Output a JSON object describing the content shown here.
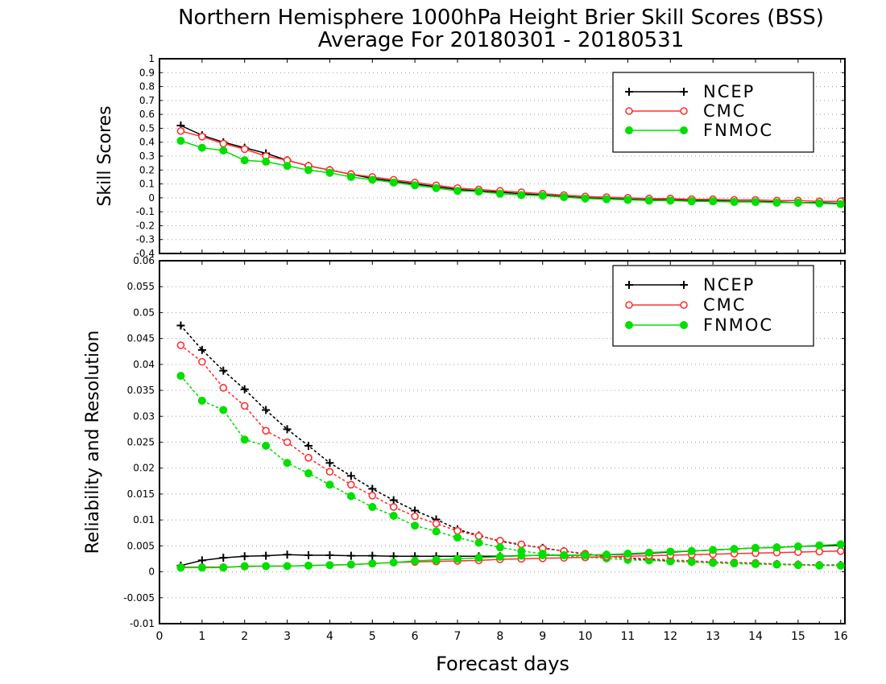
{
  "figure": {
    "title_line1": "Northern Hemisphere 1000hPa Height Brier Skill Scores (BSS)",
    "title_line2": "Average For 20180301 - 20180531",
    "xlabel": "Forecast days"
  },
  "chart_data": [
    {
      "type": "line",
      "ylabel": "Skill Scores",
      "xlim": [
        0,
        16.1
      ],
      "ylim": [
        -0.4,
        1
      ],
      "xticks": [
        0,
        1,
        2,
        3,
        4,
        5,
        6,
        7,
        8,
        9,
        10,
        11,
        12,
        13,
        14,
        15,
        16
      ],
      "yticks": [
        -0.4,
        -0.3,
        -0.2,
        -0.1,
        0,
        0.1,
        0.2,
        0.3,
        0.4,
        0.5,
        0.6,
        0.7,
        0.8,
        0.9,
        1
      ],
      "grid": true,
      "legend_position": "top-right",
      "legend": [
        "NCEP",
        "CMC",
        "FNMOC"
      ],
      "x": [
        0.5,
        1,
        1.5,
        2,
        2.5,
        3,
        3.5,
        4,
        4.5,
        5,
        5.5,
        6,
        6.5,
        7,
        7.5,
        8,
        8.5,
        9,
        9.5,
        10,
        10.5,
        11,
        11.5,
        12,
        12.5,
        13,
        13.5,
        14,
        14.5,
        15,
        15.5,
        16
      ],
      "series": [
        {
          "name": "NCEP",
          "color": "#000000",
          "marker": "plus",
          "values": [
            0.52,
            0.45,
            0.4,
            0.36,
            0.32,
            0.27,
            0.23,
            0.2,
            0.17,
            0.14,
            0.12,
            0.1,
            0.08,
            0.06,
            0.05,
            0.04,
            0.03,
            0.02,
            0.01,
            0.0,
            -0.005,
            -0.01,
            -0.015,
            -0.015,
            -0.02,
            -0.02,
            -0.025,
            -0.025,
            -0.03,
            -0.035,
            -0.035,
            -0.04
          ]
        },
        {
          "name": "CMC",
          "color": "#ff3030",
          "marker": "open-circle",
          "values": [
            0.48,
            0.44,
            0.39,
            0.35,
            0.3,
            0.27,
            0.23,
            0.2,
            0.17,
            0.15,
            0.13,
            0.11,
            0.09,
            0.07,
            0.06,
            0.05,
            0.04,
            0.03,
            0.02,
            0.01,
            0.005,
            0.0,
            -0.005,
            -0.005,
            -0.01,
            -0.01,
            -0.015,
            -0.015,
            -0.02,
            -0.02,
            -0.025,
            -0.025
          ]
        },
        {
          "name": "FNMOC",
          "color": "#00e000",
          "marker": "filled-circle",
          "values": [
            0.41,
            0.36,
            0.34,
            0.27,
            0.26,
            0.23,
            0.2,
            0.18,
            0.15,
            0.13,
            0.11,
            0.09,
            0.07,
            0.05,
            0.045,
            0.03,
            0.02,
            0.015,
            0.005,
            -0.005,
            -0.01,
            -0.015,
            -0.02,
            -0.02,
            -0.025,
            -0.025,
            -0.03,
            -0.03,
            -0.035,
            -0.035,
            -0.04,
            -0.045
          ]
        }
      ]
    },
    {
      "type": "line",
      "ylabel": "Reliability and Resolution",
      "xlim": [
        0,
        16.1
      ],
      "ylim": [
        -0.01,
        0.06
      ],
      "xticks": [
        0,
        1,
        2,
        3,
        4,
        5,
        6,
        7,
        8,
        9,
        10,
        11,
        12,
        13,
        14,
        15,
        16
      ],
      "yticks": [
        -0.01,
        -0.005,
        0,
        0.005,
        0.01,
        0.015,
        0.02,
        0.025,
        0.03,
        0.035,
        0.04,
        0.045,
        0.05,
        0.055,
        0.06
      ],
      "grid": true,
      "legend_position": "top-right",
      "legend": [
        "NCEP",
        "CMC",
        "FNMOC"
      ],
      "x": [
        0.5,
        1,
        1.5,
        2,
        2.5,
        3,
        3.5,
        4,
        4.5,
        5,
        5.5,
        6,
        6.5,
        7,
        7.5,
        8,
        8.5,
        9,
        9.5,
        10,
        10.5,
        11,
        11.5,
        12,
        12.5,
        13,
        13.5,
        14,
        14.5,
        15,
        15.5,
        16
      ],
      "series": [
        {
          "name": "NCEP",
          "role": "resolution",
          "color": "#000000",
          "marker": "plus",
          "line": "dotted",
          "values": [
            0.0475,
            0.0428,
            0.0388,
            0.0352,
            0.0312,
            0.0275,
            0.0243,
            0.021,
            0.0185,
            0.016,
            0.0138,
            0.0118,
            0.0101,
            0.0082,
            0.007,
            0.0059,
            0.0052,
            0.0046,
            0.004,
            0.0034,
            0.003,
            0.0026,
            0.0023,
            0.0021,
            0.0019,
            0.0018,
            0.0017,
            0.0016,
            0.0015,
            0.0014,
            0.0013,
            0.0013
          ]
        },
        {
          "name": "CMC",
          "role": "resolution",
          "color": "#ff3030",
          "marker": "open-circle",
          "line": "dotted",
          "values": [
            0.0437,
            0.0405,
            0.0355,
            0.032,
            0.0272,
            0.025,
            0.022,
            0.0193,
            0.0168,
            0.0147,
            0.0125,
            0.0107,
            0.0093,
            0.0079,
            0.0069,
            0.006,
            0.0053,
            0.0045,
            0.004,
            0.0035,
            0.003,
            0.0027,
            0.0025,
            0.0023,
            0.0021,
            0.0019,
            0.0018,
            0.0017,
            0.0015,
            0.0014,
            0.0013,
            0.0012
          ]
        },
        {
          "name": "FNMOC",
          "role": "resolution",
          "color": "#00e000",
          "marker": "filled-circle",
          "line": "dotted",
          "values": [
            0.0378,
            0.033,
            0.0312,
            0.0255,
            0.0243,
            0.021,
            0.019,
            0.0168,
            0.0146,
            0.0125,
            0.0108,
            0.0089,
            0.0078,
            0.0066,
            0.0056,
            0.0047,
            0.004,
            0.0035,
            0.003,
            0.0028,
            0.0026,
            0.0023,
            0.0022,
            0.002,
            0.0019,
            0.0017,
            0.0016,
            0.0015,
            0.0014,
            0.0013,
            0.0012,
            0.0012
          ]
        },
        {
          "name": "NCEP",
          "role": "reliability",
          "color": "#000000",
          "marker": "plus",
          "line": "solid",
          "values": [
            0.0012,
            0.0022,
            0.0027,
            0.003,
            0.0031,
            0.0033,
            0.0032,
            0.0032,
            0.0031,
            0.0031,
            0.003,
            0.003,
            0.003,
            0.003,
            0.003,
            0.003,
            0.0031,
            0.0032,
            0.0032,
            0.0032,
            0.0033,
            0.0034,
            0.0036,
            0.0038,
            0.004,
            0.0042,
            0.0044,
            0.0046,
            0.0047,
            0.0049,
            0.005,
            0.0051
          ]
        },
        {
          "name": "CMC",
          "role": "reliability",
          "color": "#ff3030",
          "marker": "open-circle",
          "line": "solid",
          "values": [
            0.0009,
            0.0009,
            0.0009,
            0.001,
            0.0011,
            0.0011,
            0.0012,
            0.0013,
            0.0014,
            0.0016,
            0.0018,
            0.0019,
            0.002,
            0.0021,
            0.0022,
            0.0024,
            0.0025,
            0.0026,
            0.0027,
            0.0028,
            0.0029,
            0.003,
            0.0031,
            0.0032,
            0.0033,
            0.0034,
            0.0035,
            0.0036,
            0.0037,
            0.0038,
            0.0039,
            0.004
          ]
        },
        {
          "name": "FNMOC",
          "role": "reliability",
          "color": "#00e000",
          "marker": "filled-circle",
          "line": "solid",
          "values": [
            0.0008,
            0.0008,
            0.0008,
            0.0011,
            0.0011,
            0.0011,
            0.0012,
            0.0013,
            0.0014,
            0.0016,
            0.0018,
            0.0021,
            0.0023,
            0.0025,
            0.0027,
            0.0029,
            0.0031,
            0.0032,
            0.0032,
            0.0032,
            0.0033,
            0.0035,
            0.0037,
            0.0039,
            0.004,
            0.0042,
            0.0044,
            0.0046,
            0.0047,
            0.0049,
            0.0051,
            0.0053
          ]
        }
      ]
    }
  ]
}
